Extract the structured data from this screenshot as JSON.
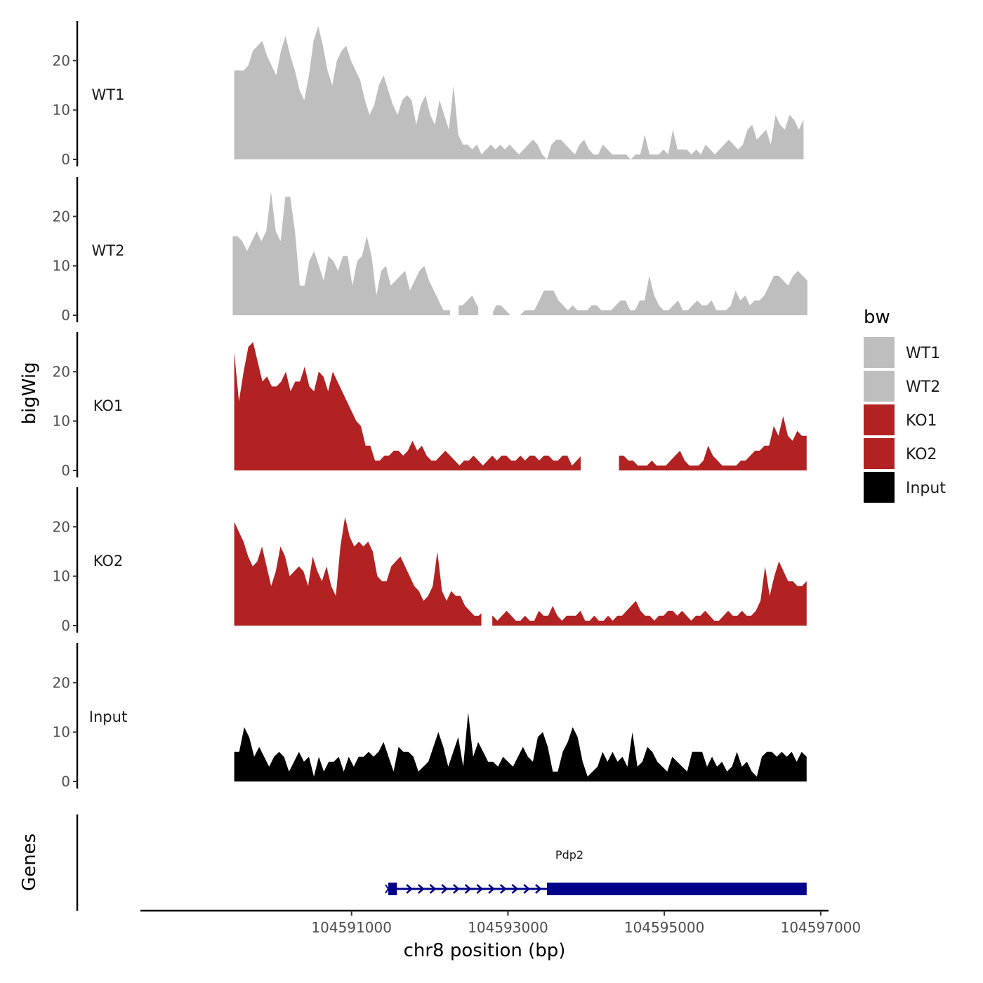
{
  "chart_data": {
    "type": "area",
    "xlabel": "chr8 position (bp)",
    "ylabel": "bigWig",
    "genes_label": "Genes",
    "xlim": [
      104588300,
      104597100
    ],
    "ylim": [
      0,
      28
    ],
    "x_ticks": [
      104591000,
      104593000,
      104595000,
      104597000
    ],
    "x_tick_labels": [
      "104591000",
      "104593000",
      "104595000",
      "104597000"
    ],
    "y_ticks": [
      0,
      10,
      20
    ],
    "y_tick_labels": [
      "0",
      "10",
      "20"
    ],
    "legend": {
      "title": "bw",
      "items": [
        {
          "label": "WT1",
          "color": "#bebebe"
        },
        {
          "label": "WT2",
          "color": "#bebebe"
        },
        {
          "label": "KO1",
          "color": "#b22222"
        },
        {
          "label": "KO2",
          "color": "#b22222"
        },
        {
          "label": "Input",
          "color": "#000000"
        }
      ]
    },
    "tracks": [
      {
        "name": "WT1",
        "color": "#bebebe",
        "x_start": 104589500,
        "x_end": 104596780,
        "values": [
          18,
          18,
          18,
          19,
          22,
          23,
          24,
          21,
          19,
          17,
          22,
          25,
          21,
          18,
          14,
          12,
          17,
          24,
          27,
          23,
          18,
          15,
          20,
          22,
          23,
          20,
          18,
          16,
          12,
          9,
          11,
          15,
          17,
          14,
          11,
          9,
          12,
          13,
          12,
          7,
          11,
          13,
          9,
          7,
          12,
          9,
          6,
          15,
          5,
          3,
          3,
          2,
          3,
          1,
          2,
          3,
          2,
          3,
          2,
          3,
          2,
          1,
          2,
          3,
          4,
          3,
          1,
          0,
          3,
          4,
          4,
          3,
          2,
          1,
          3,
          4,
          2,
          1,
          1,
          3,
          2,
          1,
          1,
          1,
          1,
          0,
          1,
          1,
          5,
          1,
          1,
          1,
          2,
          1,
          6,
          2,
          2,
          2,
          1,
          2,
          1,
          3,
          2,
          1,
          2,
          3,
          4,
          3,
          2,
          3,
          6,
          7,
          4,
          5,
          6,
          3,
          9,
          7,
          6,
          9,
          8,
          6,
          8
        ],
        "gaps": []
      },
      {
        "name": "WT2",
        "color": "#bebebe",
        "x_start": 104589480,
        "x_end": 104596830,
        "values": [
          16,
          16,
          15,
          13,
          15,
          17,
          15,
          17,
          25,
          17,
          15,
          24,
          24,
          17,
          6,
          6,
          11,
          13,
          10,
          7,
          12,
          11,
          9,
          12,
          12,
          6,
          11,
          12,
          16,
          12,
          4,
          9,
          10,
          6,
          7,
          8,
          9,
          5,
          7,
          9,
          10,
          7,
          5,
          3,
          1,
          1,
          1,
          2,
          2,
          3,
          4,
          2,
          1,
          1,
          0,
          2,
          2,
          1,
          0,
          0,
          0,
          1,
          1,
          1,
          3,
          5,
          5,
          5,
          3,
          2,
          1,
          2,
          1,
          1,
          1,
          2,
          2,
          1,
          1,
          1,
          2,
          3,
          3,
          1,
          1,
          3,
          3,
          8,
          4,
          2,
          1,
          1,
          2,
          3,
          1,
          1,
          2,
          3,
          2,
          2,
          3,
          1,
          1,
          1,
          2,
          5,
          3,
          4,
          2,
          3,
          3,
          4,
          6,
          8,
          8,
          7,
          6,
          8,
          9,
          8,
          7
        ],
        "gaps": [
          [
            104592260,
            104592370
          ],
          [
            104592620,
            104592810
          ]
        ]
      },
      {
        "name": "KO1",
        "color": "#b22222",
        "x_start": 104589500,
        "x_end": 104596820,
        "values": [
          24,
          14,
          20,
          25,
          26,
          22,
          18,
          19,
          17,
          17,
          18,
          20,
          16,
          18,
          18,
          21,
          17,
          16,
          20,
          19,
          16,
          20,
          18,
          16,
          14,
          12,
          10,
          9,
          5,
          5,
          2,
          2,
          3,
          3,
          4,
          4,
          3,
          4,
          6,
          4,
          5,
          3,
          2,
          2,
          3,
          4,
          3,
          2,
          1,
          2,
          2,
          3,
          2,
          1,
          2,
          3,
          2,
          3,
          3,
          2,
          2,
          3,
          2,
          3,
          3,
          2,
          3,
          3,
          2,
          2,
          3,
          3,
          1,
          2,
          3,
          2,
          1,
          1,
          2,
          2,
          2,
          3,
          3,
          3,
          2,
          2,
          1,
          1,
          1,
          2,
          1,
          1,
          1,
          2,
          3,
          4,
          2,
          1,
          1,
          1,
          2,
          5,
          3,
          2,
          1,
          1,
          1,
          1,
          2,
          2,
          3,
          4,
          4,
          5,
          5,
          9,
          7,
          11,
          7,
          6,
          8,
          7,
          7
        ],
        "gaps": [
          [
            104593930,
            104594420
          ]
        ]
      },
      {
        "name": "KO2",
        "color": "#b22222",
        "x_start": 104589500,
        "x_end": 104596820,
        "values": [
          21,
          19,
          17,
          14,
          12,
          13,
          16,
          12,
          8,
          11,
          16,
          14,
          10,
          11,
          12,
          11,
          8,
          14,
          11,
          9,
          12,
          8,
          6,
          16,
          22,
          18,
          16,
          17,
          16,
          17,
          15,
          10,
          9,
          9,
          12,
          13,
          14,
          12,
          10,
          8,
          7,
          5,
          6,
          8,
          15,
          7,
          5,
          7,
          6,
          6,
          4,
          3,
          2,
          2,
          3,
          2,
          2,
          1,
          2,
          3,
          2,
          1,
          1,
          2,
          1,
          1,
          3,
          2,
          2,
          4,
          2,
          1,
          2,
          2,
          2,
          3,
          1,
          1,
          2,
          1,
          1,
          2,
          1,
          2,
          2,
          3,
          4,
          5,
          3,
          2,
          2,
          1,
          2,
          2,
          3,
          3,
          2,
          3,
          2,
          1,
          2,
          2,
          3,
          2,
          1,
          1,
          2,
          3,
          2,
          2,
          3,
          2,
          2,
          3,
          5,
          12,
          6,
          10,
          13,
          11,
          9,
          9,
          8,
          8,
          9
        ],
        "gaps": [
          [
            104592660,
            104592800
          ]
        ]
      },
      {
        "name": "Input",
        "color": "#000000",
        "x_start": 104589500,
        "x_end": 104596820,
        "values": [
          6,
          6,
          11,
          9,
          5,
          7,
          5,
          3,
          5,
          6,
          5,
          2,
          4,
          6,
          4,
          5,
          1,
          5,
          2,
          4,
          4,
          5,
          2,
          5,
          3,
          5,
          5,
          6,
          5,
          6,
          8,
          5,
          2,
          7,
          6,
          6,
          5,
          2,
          3,
          4,
          7,
          10,
          7,
          3,
          6,
          9,
          3,
          14,
          5,
          8,
          6,
          4,
          4,
          3,
          5,
          4,
          3,
          5,
          7,
          5,
          4,
          9,
          10,
          7,
          2,
          2,
          6,
          8,
          11,
          9,
          4,
          1,
          2,
          3,
          6,
          4,
          6,
          4,
          5,
          3,
          10,
          3,
          4,
          7,
          6,
          4,
          3,
          2,
          5,
          4,
          3,
          2,
          6,
          6,
          6,
          3,
          5,
          3,
          4,
          2,
          3,
          6,
          3,
          4,
          2,
          1,
          5,
          6,
          6,
          5,
          6,
          5,
          6,
          4,
          6,
          5
        ],
        "gaps": []
      }
    ],
    "gene": {
      "name": "Pdp2",
      "color": "#00008b",
      "start": 104591470,
      "end": 104596820,
      "utr_block": [
        104591470,
        104591580
      ],
      "coding_block": [
        104593500,
        104596820
      ],
      "strand": "+"
    }
  }
}
